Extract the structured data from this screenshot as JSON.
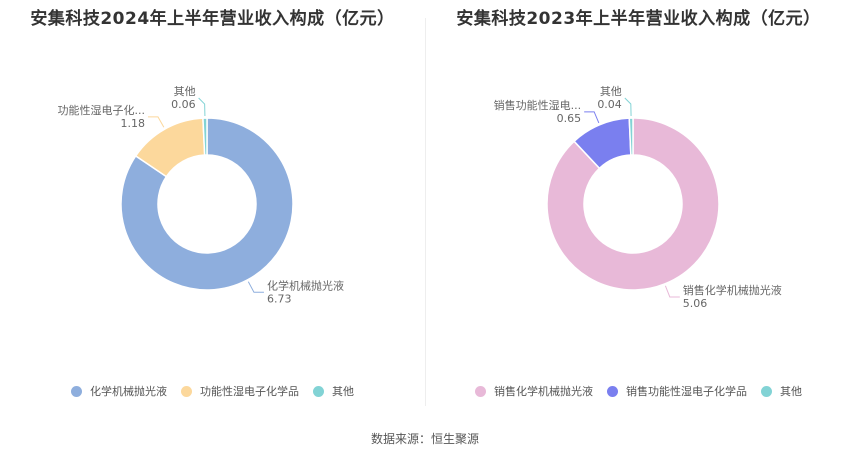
{
  "source": "数据来源：恒生聚源",
  "chart_data": [
    {
      "type": "pie",
      "title": "安集科技2024年上半年营业收入构成（亿元）",
      "categories": [
        "化学机械抛光液",
        "功能性湿电子化学品",
        "其他"
      ],
      "values": [
        6.73,
        1.18,
        0.06
      ],
      "value_labels": [
        "6.73",
        "1.18",
        "0.06"
      ],
      "slice_labels": [
        "化学机械抛光液",
        "功能性湿电子化...",
        "其他"
      ],
      "colors": [
        "#8eaedd",
        "#fcd89c",
        "#82d3d5"
      ],
      "legend": [
        "化学机械抛光液",
        "功能性湿电子化学品",
        "其他"
      ],
      "legend_position": "bottom"
    },
    {
      "type": "pie",
      "title": "安集科技2023年上半年营业收入构成（亿元）",
      "categories": [
        "销售化学机械抛光液",
        "销售功能性湿电子化学品",
        "其他"
      ],
      "values": [
        5.06,
        0.65,
        0.04
      ],
      "value_labels": [
        "5.06",
        "0.65",
        "0.04"
      ],
      "slice_labels": [
        "销售化学机械抛光液",
        "销售功能性湿电...",
        "其他"
      ],
      "colors": [
        "#e8b9d8",
        "#7a7fef",
        "#82d3d5"
      ],
      "legend": [
        "销售化学机械抛光液",
        "销售功能性湿电子化学品",
        "其他"
      ],
      "legend_position": "bottom"
    }
  ]
}
